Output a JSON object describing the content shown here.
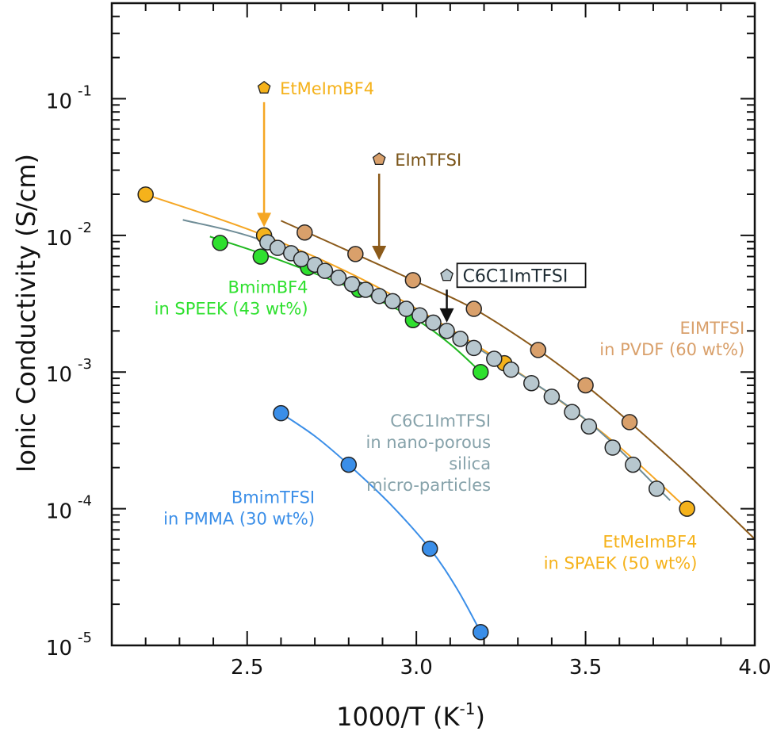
{
  "chart_data": {
    "type": "scatter",
    "title": "",
    "xlabel": "1000/T (K",
    "xlabel_sup": "-1",
    "xlabel_close": ")",
    "ylabel": "Ionic Conductivity (S/cm)",
    "xlim": [
      2.1,
      4.0
    ],
    "ylim": [
      1e-05,
      0.5
    ],
    "yscale": "log",
    "grid": false,
    "x_ticks": [
      {
        "value": 2.5,
        "label": "2.5"
      },
      {
        "value": 3.0,
        "label": "3.0"
      },
      {
        "value": 3.5,
        "label": "3.5"
      },
      {
        "value": 4.0,
        "label": "4.0"
      }
    ],
    "y_ticks": [
      {
        "value": 0.1,
        "base": "10",
        "exp": "-1"
      },
      {
        "value": 0.01,
        "base": "10",
        "exp": "-2"
      },
      {
        "value": 0.001,
        "base": "10",
        "exp": "-3"
      },
      {
        "value": 0.0001,
        "base": "10",
        "exp": "-4"
      },
      {
        "value": 1e-05,
        "base": "10",
        "exp": "-5"
      }
    ],
    "series": [
      {
        "name": "EtMeImBF4 in SPAEK (50 wt%)",
        "color": "#F5B21B",
        "line_color": "#F5A623",
        "x": [
          2.2,
          2.55,
          3.26,
          3.8
        ],
        "y": [
          0.0199,
          0.01,
          0.00116,
          0.0001
        ],
        "fit": {
          "x": [
            2.2,
            2.55,
            2.9,
            3.26,
            3.55,
            3.8
          ],
          "y": [
            0.0199,
            0.01,
            0.004,
            0.00116,
            0.00036,
            0.0001
          ]
        }
      },
      {
        "name": "C6C1ImTFSI in nano-porous silica micro-particles",
        "color": "#B7C7CE",
        "line_color": "#6E8C96",
        "x": [
          2.56,
          2.59,
          2.63,
          2.66,
          2.7,
          2.73,
          2.77,
          2.81,
          2.85,
          2.89,
          2.93,
          2.97,
          3.01,
          3.05,
          3.09,
          3.13,
          3.17,
          3.23,
          3.28,
          3.34,
          3.4,
          3.46,
          3.51,
          3.58,
          3.64,
          3.71
        ],
        "y": [
          0.0089,
          0.0081,
          0.0074,
          0.0067,
          0.0061,
          0.0055,
          0.0049,
          0.0044,
          0.004,
          0.0036,
          0.0033,
          0.0029,
          0.0026,
          0.0023,
          0.002,
          0.00175,
          0.0015,
          0.00125,
          0.00104,
          0.00083,
          0.00066,
          0.00051,
          0.0004,
          0.00028,
          0.00021,
          0.00014
        ],
        "fit": {
          "x": [
            2.31,
            2.56,
            2.9,
            3.2,
            3.5,
            3.75
          ],
          "y": [
            0.013,
            0.0089,
            0.0036,
            0.0014,
            0.00045,
            0.000115
          ]
        }
      },
      {
        "name": "BmimBF4 in SPEEK (43 wt%)",
        "color": "#2EE02E",
        "line_color": "#1FB81F",
        "x": [
          2.42,
          2.54,
          2.68,
          2.83,
          2.99,
          3.19
        ],
        "y": [
          0.0088,
          0.007,
          0.0058,
          0.004,
          0.0024,
          0.001
        ],
        "fit": {
          "x": [
            2.39,
            2.54,
            2.68,
            2.83,
            2.99,
            3.1,
            3.19
          ],
          "y": [
            0.0098,
            0.0074,
            0.0055,
            0.0039,
            0.0025,
            0.0016,
            0.001
          ]
        }
      },
      {
        "name": "EIMTFSI in PVDF (60 wt%)",
        "color": "#D9A06B",
        "line_color": "#8B5A1A",
        "x": [
          2.67,
          2.82,
          2.99,
          3.17,
          3.36,
          3.5,
          3.63
        ],
        "y": [
          0.0105,
          0.0073,
          0.0047,
          0.0029,
          0.00145,
          0.0008,
          0.00043
        ],
        "fit": {
          "x": [
            2.6,
            2.82,
            2.99,
            3.17,
            3.36,
            3.5,
            3.63,
            3.8,
            4.0
          ],
          "y": [
            0.0128,
            0.0073,
            0.0047,
            0.0029,
            0.00145,
            0.0008,
            0.00043,
            0.00018,
            6e-05
          ]
        }
      },
      {
        "name": "BmimTFSI in PMMA (30 wt%)",
        "color": "#3A8EE8",
        "line_color": "#3A8EE8",
        "x": [
          2.6,
          2.8,
          3.04,
          3.19
        ],
        "y": [
          0.0005,
          0.00021,
          5.1e-05,
          1.25e-05
        ],
        "fit": {
          "x": [
            2.6,
            2.7,
            2.8,
            2.92,
            3.04,
            3.12,
            3.19
          ],
          "y": [
            0.0005,
            0.00034,
            0.00021,
            0.00011,
            5.1e-05,
            2.6e-05,
            1.25e-05
          ]
        }
      }
    ],
    "pure_liquids": [
      {
        "name": "EtMeImBF4",
        "x": 2.55,
        "y": 0.12,
        "color": "#F5B21B",
        "text_color": "#F5B21B",
        "arrow_color": "#F5A623",
        "arrow_to_y": 0.0115
      },
      {
        "name": "EImTFSI",
        "x": 2.89,
        "y": 0.036,
        "color": "#D9A06B",
        "text_color": "#7A5418",
        "arrow_color": "#8B5A1A",
        "arrow_to_y": 0.0066
      },
      {
        "name": "C6C1ImTFSI",
        "x": 3.09,
        "y": 0.0051,
        "color": "#B7C7CE",
        "text_color": "#1D2B33",
        "arrow_color": "#111111",
        "arrow_to_y": 0.0023,
        "boxed": true
      }
    ],
    "annotations": [
      {
        "lines": [
          "BmimBF4",
          "in SPEEK (43 wt%)"
        ],
        "color": "#2EE02E",
        "anchor": "end",
        "x": 2.68,
        "y": 0.0038
      },
      {
        "lines": [
          "EIMTFSI",
          "in PVDF (60 wt%)"
        ],
        "color": "#D9A06B",
        "anchor": "end",
        "x": 3.97,
        "y": 0.0019
      },
      {
        "lines": [
          "C6C1ImTFSI",
          "in nano-porous",
          "silica",
          "micro-particles"
        ],
        "color": "#86A2AA",
        "anchor": "end",
        "x": 3.22,
        "y": 0.0004
      },
      {
        "lines": [
          "BmimTFSI",
          "in PMMA (30 wt%)"
        ],
        "color": "#3A8EE8",
        "anchor": "end",
        "x": 2.7,
        "y": 0.00011
      },
      {
        "lines": [
          "EtMeImBF4",
          "in SPAEK (50 wt%)"
        ],
        "color": "#F5B21B",
        "anchor": "end",
        "x": 3.83,
        "y": 5.2e-05
      }
    ]
  }
}
